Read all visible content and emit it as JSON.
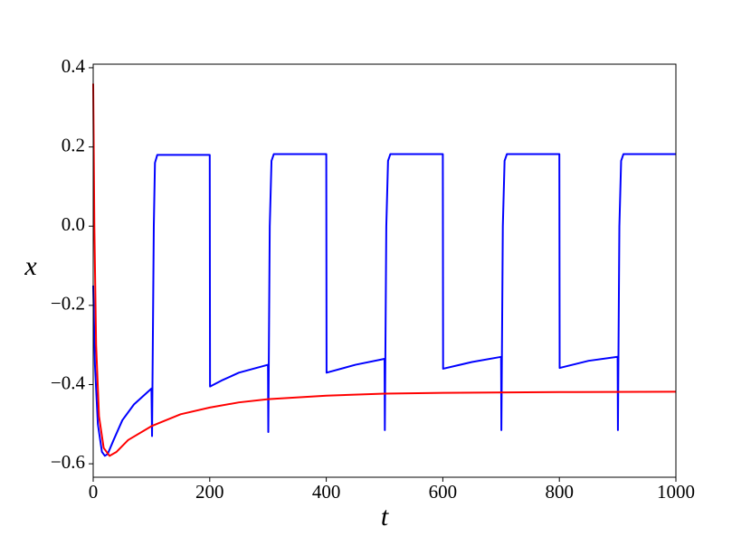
{
  "chart_data": {
    "type": "line",
    "xlabel": "t",
    "ylabel": "x",
    "xlim": [
      0,
      1000
    ],
    "ylim": [
      -0.634,
      0.409
    ],
    "xticks": [
      0,
      200,
      400,
      600,
      800,
      1000
    ],
    "yticks": [
      {
        "value": -0.6,
        "label": "−0.6"
      },
      {
        "value": -0.4,
        "label": "−0.4"
      },
      {
        "value": -0.2,
        "label": "−0.2"
      },
      {
        "value": 0.0,
        "label": "0.0"
      },
      0.2,
      0.4
    ],
    "series": [
      {
        "color": "#0000ff",
        "x": [
          0,
          3,
          8,
          15,
          20,
          25,
          35,
          50,
          70,
          100,
          101,
          104,
          106,
          110,
          200,
          200.5,
          220,
          250,
          300,
          300.5,
          303,
          306,
          310,
          400,
          400.5,
          450,
          500,
          500.5,
          503,
          506,
          510,
          600,
          600.5,
          650,
          700,
          700.5,
          703,
          706,
          710,
          800,
          800.5,
          850,
          900,
          900.5,
          903,
          906,
          910,
          1000
        ],
        "values": [
          -0.15,
          -0.35,
          -0.5,
          -0.57,
          -0.58,
          -0.575,
          -0.54,
          -0.49,
          -0.45,
          -0.41,
          -0.53,
          0.0,
          0.16,
          0.18,
          0.18,
          -0.405,
          -0.39,
          -0.37,
          -0.35,
          -0.52,
          0.0,
          0.165,
          0.182,
          0.182,
          -0.37,
          -0.35,
          -0.335,
          -0.515,
          0.0,
          0.165,
          0.182,
          0.182,
          -0.36,
          -0.343,
          -0.33,
          -0.515,
          0.0,
          0.165,
          0.182,
          0.182,
          -0.358,
          -0.34,
          -0.33,
          -0.515,
          0.0,
          0.165,
          0.182,
          0.182
        ]
      },
      {
        "color": "#ff0000",
        "x": [
          0,
          2,
          5,
          10,
          18,
          28,
          40,
          60,
          100,
          150,
          200,
          250,
          300,
          400,
          500,
          600,
          800,
          1000
        ],
        "values": [
          0.36,
          0.0,
          -0.3,
          -0.48,
          -0.56,
          -0.58,
          -0.57,
          -0.54,
          -0.505,
          -0.475,
          -0.458,
          -0.445,
          -0.437,
          -0.428,
          -0.423,
          -0.421,
          -0.419,
          -0.418
        ]
      }
    ]
  }
}
